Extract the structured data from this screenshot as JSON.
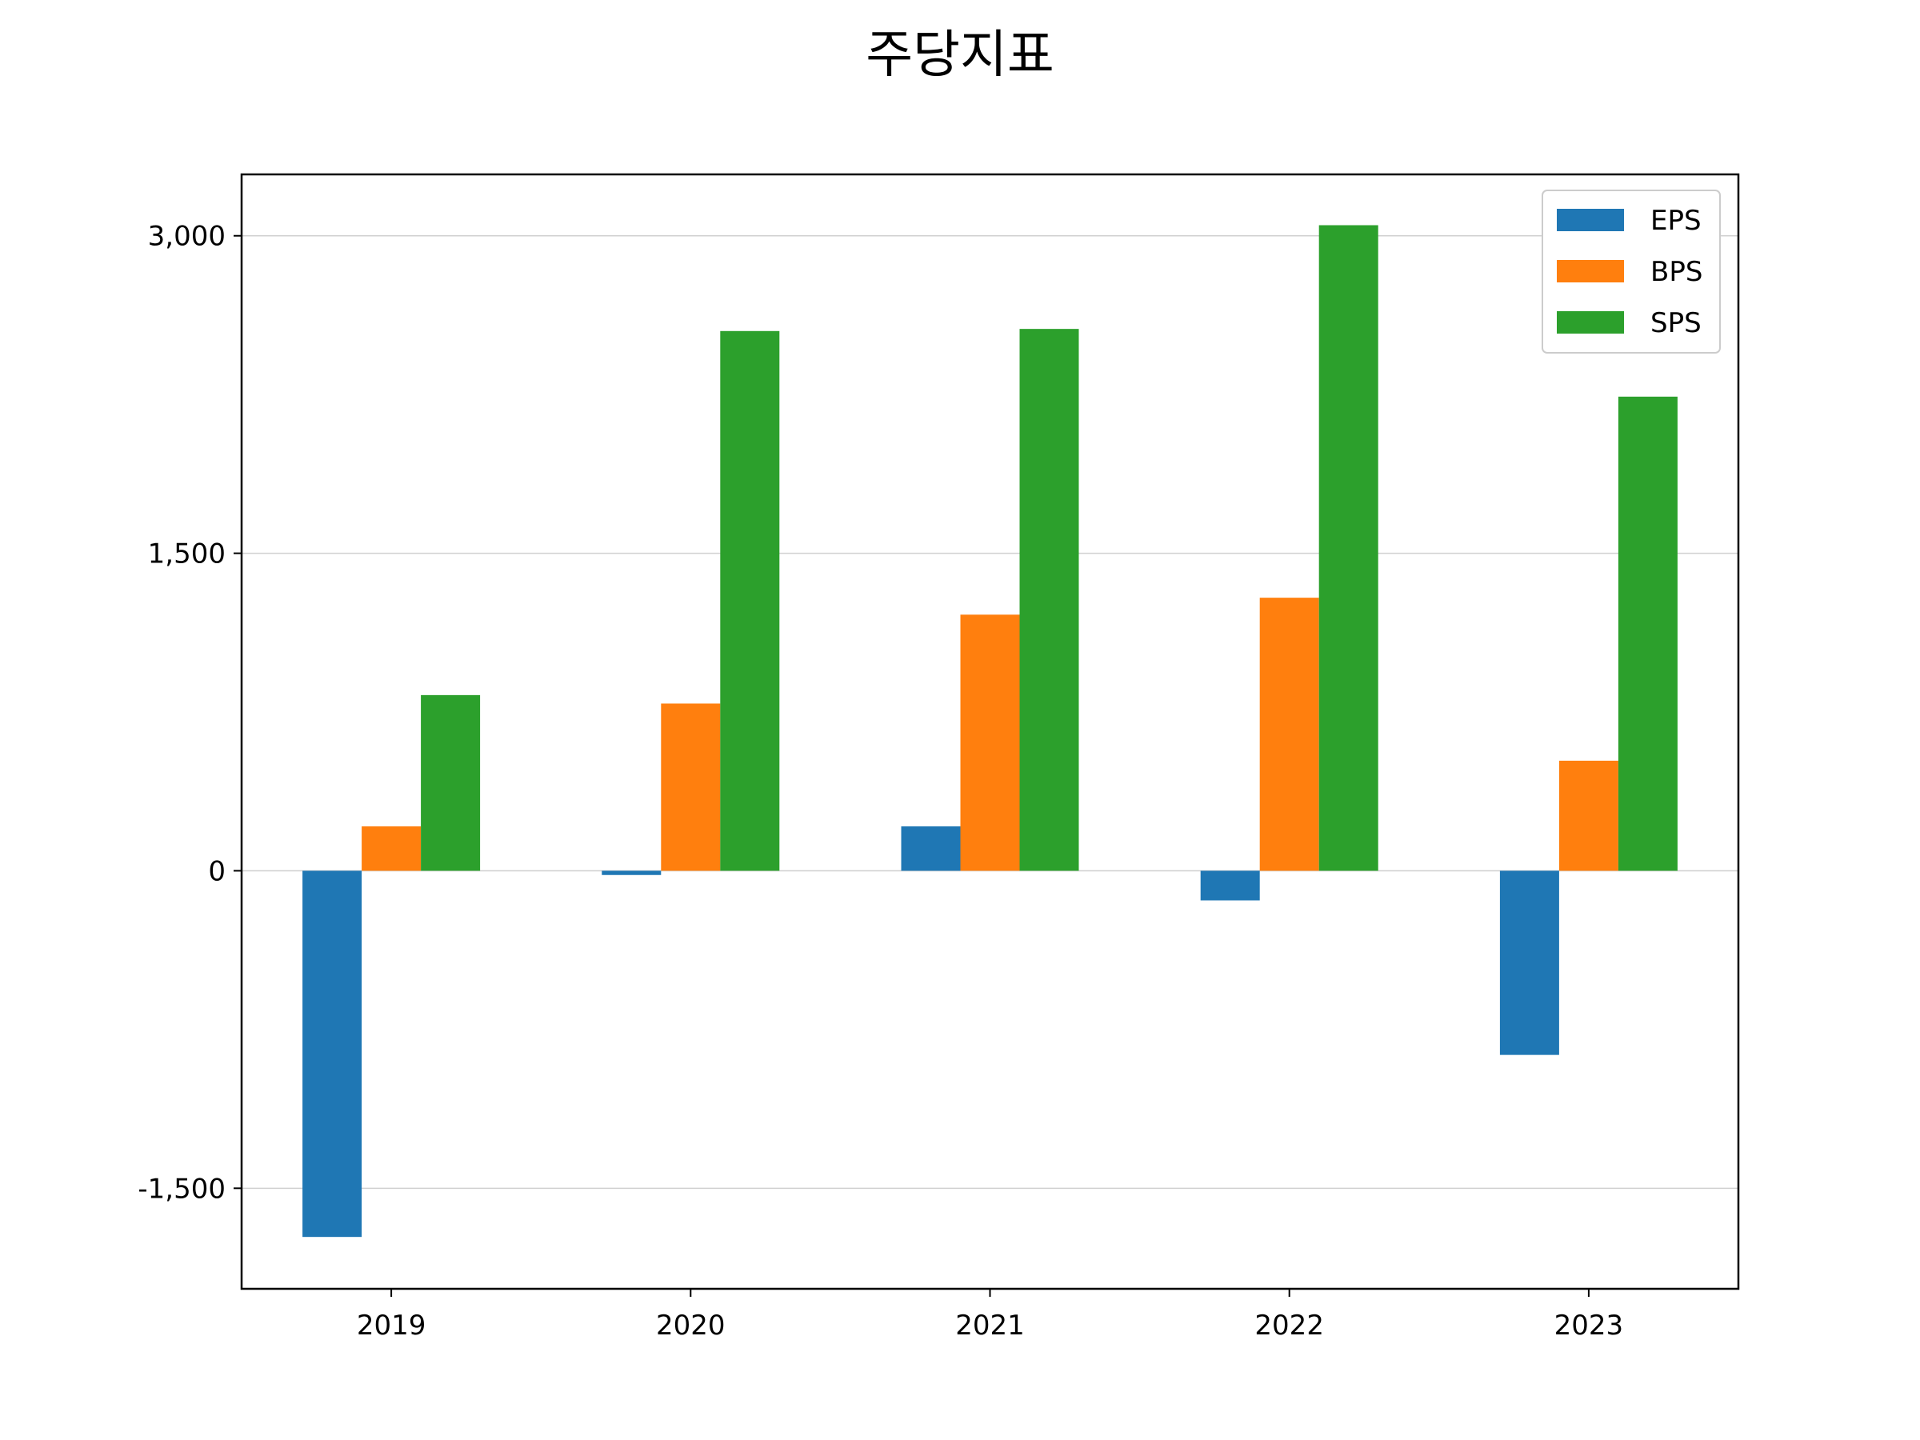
{
  "chart_data": {
    "type": "bar",
    "title": "주당지표",
    "xlabel": "",
    "ylabel": "",
    "categories": [
      "2019",
      "2020",
      "2021",
      "2022",
      "2023"
    ],
    "series": [
      {
        "name": "EPS",
        "color": "#1f77b4",
        "values": [
          -1730,
          -20,
          210,
          -140,
          -870
        ]
      },
      {
        "name": "BPS",
        "color": "#ff7f0e",
        "values": [
          210,
          790,
          1210,
          1290,
          520
        ]
      },
      {
        "name": "SPS",
        "color": "#2ca02c",
        "values": [
          830,
          2550,
          2560,
          3050,
          2240
        ]
      }
    ],
    "yticks": [
      -1500,
      0,
      1500,
      3000
    ],
    "ytick_labels": [
      "-1,500",
      "0",
      "1,500",
      "3,000"
    ],
    "ylim": [
      -1975,
      3290
    ],
    "grid": "horizontal",
    "legend_position": "top-right"
  }
}
